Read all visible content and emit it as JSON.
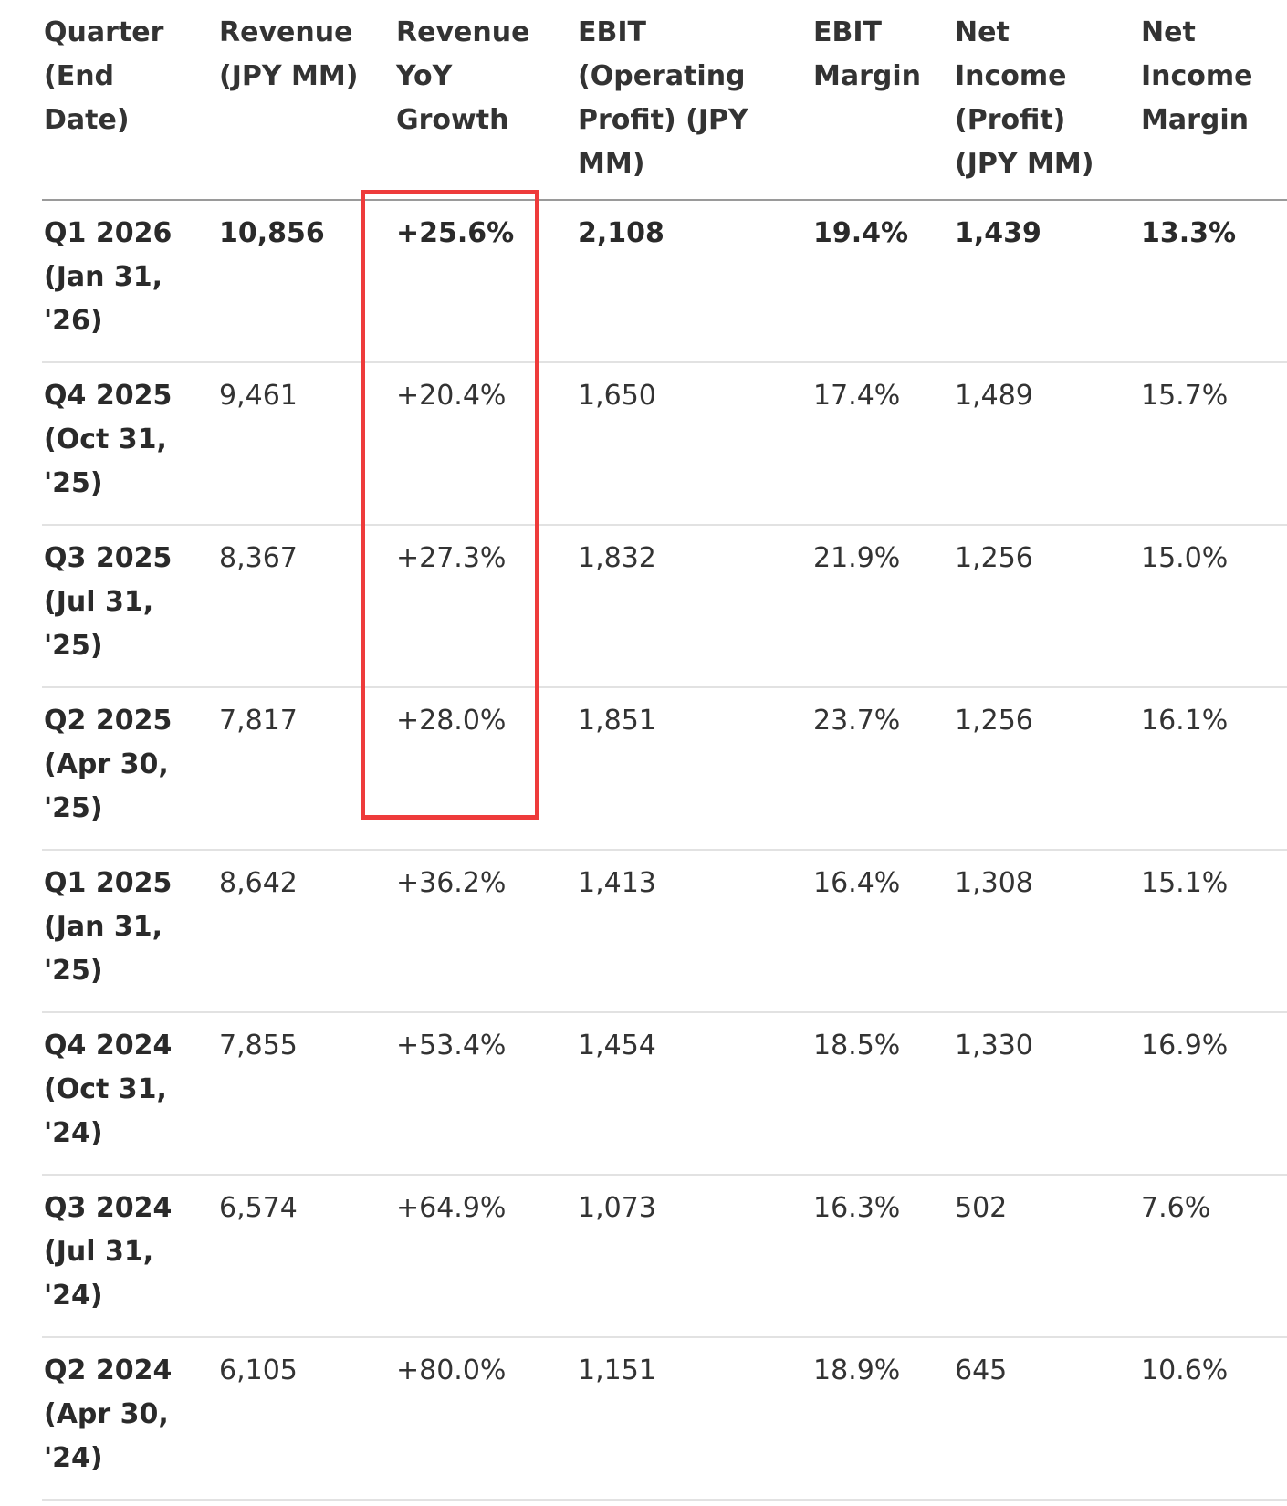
{
  "table": {
    "headers": [
      "Quarter\n(End\nDate)",
      "Revenue\n(JPY MM)",
      "Revenue\nYoY\nGrowth",
      "EBIT\n(Operating\nProfit) (JPY\nMM)",
      "EBIT\nMargin",
      "Net\nIncome\n(Profit)\n(JPY MM)",
      "Net\nIncome\nMargin"
    ],
    "rows": [
      [
        "Q1 2026\n(Jan 31,\n'26)",
        "10,856",
        "+25.6%",
        "2,108",
        "19.4%",
        "1,439",
        "13.3%"
      ],
      [
        "Q4 2025\n(Oct 31,\n'25)",
        "9,461",
        "+20.4%",
        "1,650",
        "17.4%",
        "1,489",
        "15.7%"
      ],
      [
        "Q3 2025\n(Jul 31,\n'25)",
        "8,367",
        "+27.3%",
        "1,832",
        "21.9%",
        "1,256",
        "15.0%"
      ],
      [
        "Q2 2025\n(Apr 30,\n'25)",
        "7,817",
        "+28.0%",
        "1,851",
        "23.7%",
        "1,256",
        "16.1%"
      ],
      [
        "Q1 2025\n(Jan 31,\n'25)",
        "8,642",
        "+36.2%",
        "1,413",
        "16.4%",
        "1,308",
        "15.1%"
      ],
      [
        "Q4 2024\n(Oct 31,\n'24)",
        "7,855",
        "+53.4%",
        "1,454",
        "18.5%",
        "1,330",
        "16.9%"
      ],
      [
        "Q3 2024\n(Jul 31,\n'24)",
        "6,574",
        "+64.9%",
        "1,073",
        "16.3%",
        "502",
        "7.6%"
      ],
      [
        "Q2 2024\n(Apr 30,\n'24)",
        "6,105",
        "+80.0%",
        "1,151",
        "18.9%",
        "645",
        "10.6%"
      ]
    ]
  },
  "highlight": {
    "color": "#ee3b3b",
    "column": "Revenue YoY Growth"
  }
}
